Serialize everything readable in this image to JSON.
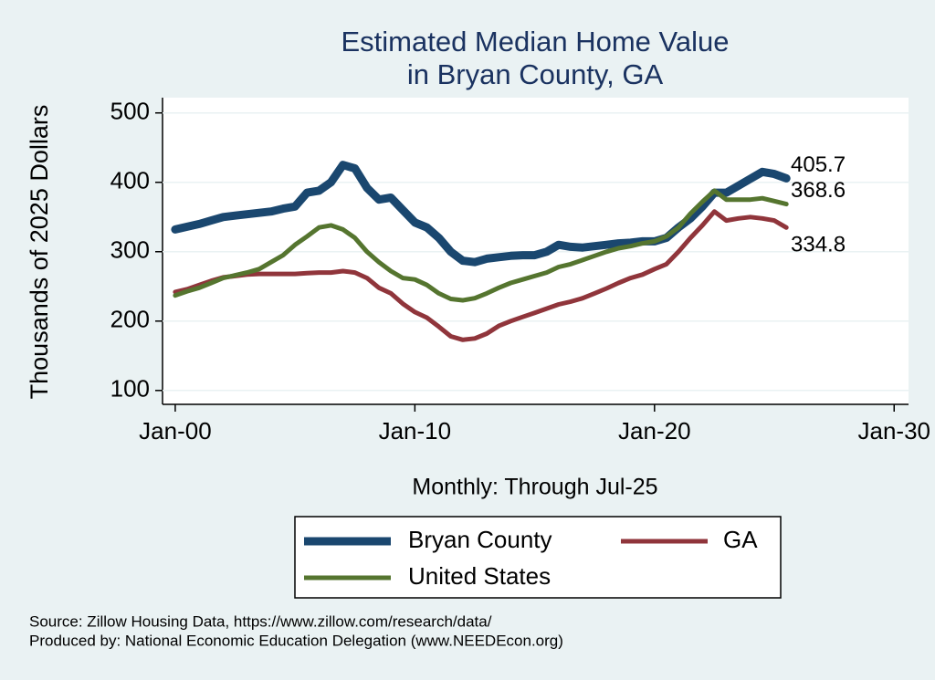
{
  "chart_data": {
    "type": "line",
    "title": [
      "Estimated Median Home Value",
      "in Bryan County, GA"
    ],
    "y_label": "Thousands of 2025 Dollars",
    "x_label": "Monthly: Through Jul-25",
    "source": [
      "Source: Zillow Housing Data, https://www.zillow.com/research/data/",
      "Produced by: National Economic Education Delegation (www.NEEDEcon.org)"
    ],
    "x": [
      2000,
      2000.5,
      2001,
      2001.5,
      2002,
      2002.5,
      2003,
      2003.5,
      2004,
      2004.5,
      2005,
      2005.5,
      2006,
      2006.5,
      2007,
      2007.5,
      2008,
      2008.5,
      2009,
      2009.5,
      2010,
      2010.5,
      2011,
      2011.5,
      2012,
      2012.5,
      2013,
      2013.5,
      2014,
      2014.5,
      2015,
      2015.5,
      2016,
      2016.5,
      2017,
      2017.5,
      2018,
      2018.5,
      2019,
      2019.5,
      2020,
      2020.5,
      2021,
      2021.5,
      2022,
      2022.5,
      2023,
      2023.5,
      2024,
      2024.5,
      2025,
      2025.5
    ],
    "series": [
      {
        "name": "Bryan County",
        "color": "#1a476f",
        "width": 9,
        "end_label": "405.7",
        "values": [
          332,
          336,
          340,
          345,
          350,
          352,
          354,
          356,
          358,
          362,
          365,
          385,
          388,
          400,
          425,
          420,
          392,
          375,
          378,
          360,
          342,
          335,
          320,
          300,
          287,
          285,
          290,
          292,
          294,
          295,
          295,
          300,
          310,
          307,
          306,
          308,
          310,
          312,
          313,
          315,
          315,
          320,
          335,
          348,
          365,
          385,
          385,
          395,
          405,
          415,
          412,
          405.7
        ]
      },
      {
        "name": "GA",
        "color": "#90353b",
        "width": 5,
        "end_label": "334.8",
        "values": [
          242,
          246,
          252,
          258,
          263,
          265,
          267,
          268,
          268,
          268,
          268,
          269,
          270,
          270,
          272,
          270,
          262,
          248,
          240,
          225,
          213,
          205,
          192,
          178,
          173,
          175,
          182,
          193,
          200,
          206,
          212,
          218,
          224,
          228,
          233,
          240,
          247,
          255,
          262,
          267,
          275,
          282,
          300,
          320,
          338,
          358,
          345,
          348,
          350,
          348,
          345,
          334.8
        ]
      },
      {
        "name": "United States",
        "color": "#55752f",
        "width": 5,
        "end_label": "368.6",
        "values": [
          237,
          243,
          248,
          255,
          262,
          266,
          270,
          275,
          285,
          295,
          310,
          322,
          335,
          338,
          332,
          320,
          300,
          285,
          272,
          262,
          260,
          252,
          240,
          232,
          230,
          233,
          240,
          248,
          255,
          260,
          265,
          270,
          278,
          282,
          288,
          294,
          300,
          305,
          308,
          312,
          315,
          322,
          335,
          355,
          372,
          388,
          375,
          375,
          375,
          377,
          373,
          368.6
        ]
      }
    ],
    "xlim": [
      1999.47,
      2030.6
    ],
    "xticks": [
      {
        "value": 2000,
        "label": "Jan-00"
      },
      {
        "value": 2010,
        "label": "Jan-10"
      },
      {
        "value": 2020,
        "label": "Jan-20"
      },
      {
        "value": 2030,
        "label": "Jan-30"
      }
    ],
    "ylim": [
      80,
      522
    ],
    "yticks": [
      100,
      200,
      300,
      400,
      500
    ],
    "grid": true
  }
}
